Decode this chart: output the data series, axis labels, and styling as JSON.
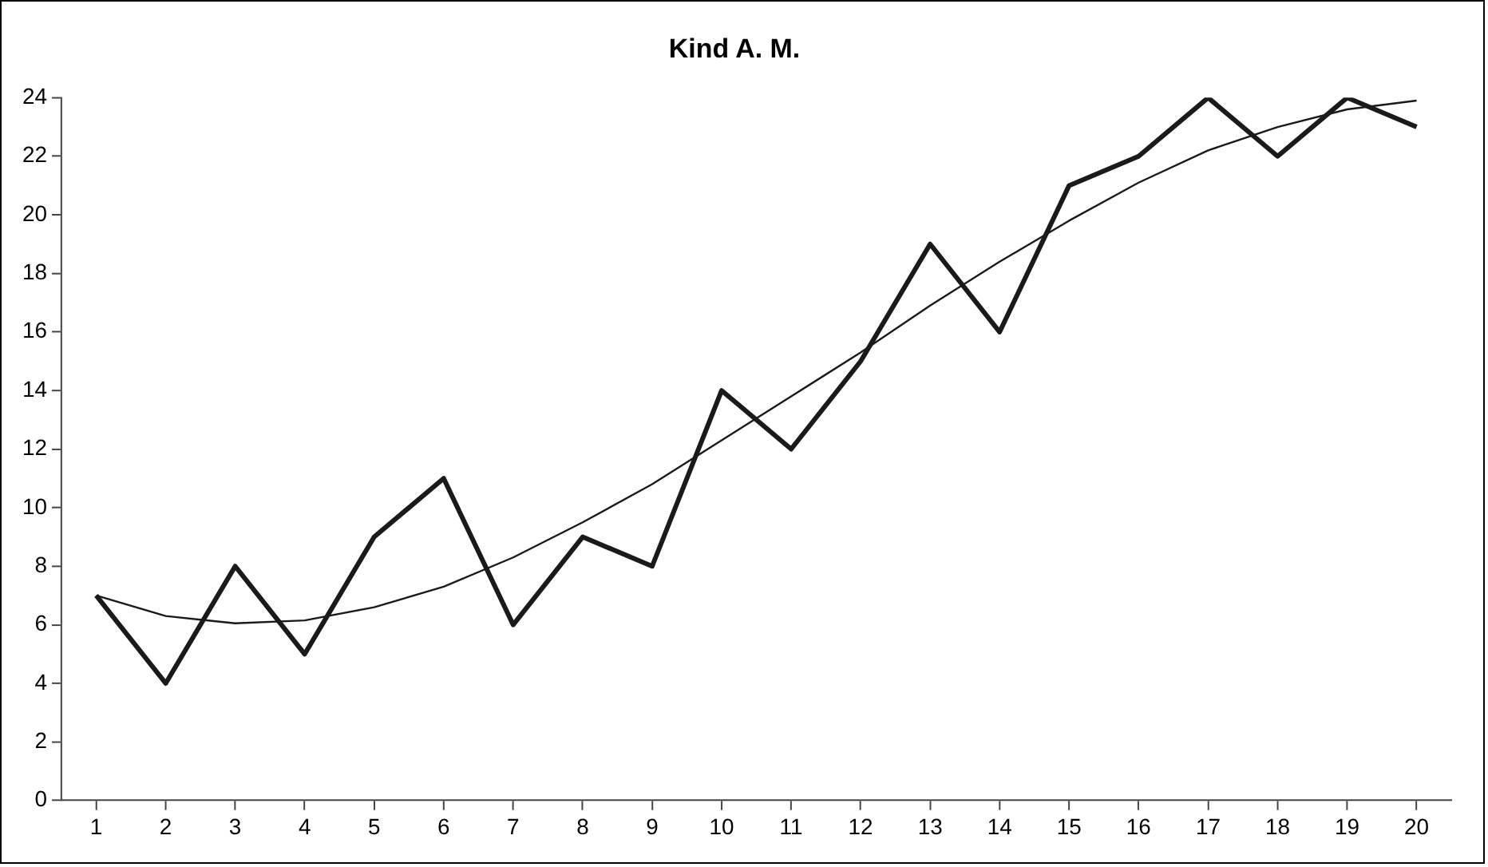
{
  "chart_data": {
    "type": "line",
    "title": "Kind A. M.",
    "x": [
      1,
      2,
      3,
      4,
      5,
      6,
      7,
      8,
      9,
      10,
      11,
      12,
      13,
      14,
      15,
      16,
      17,
      18,
      19,
      20
    ],
    "xlim": [
      0.5,
      20.5
    ],
    "xticks": [
      1,
      2,
      3,
      4,
      5,
      6,
      7,
      8,
      9,
      10,
      11,
      12,
      13,
      14,
      15,
      16,
      17,
      18,
      19,
      20
    ],
    "ylim": [
      0,
      24
    ],
    "yticks": [
      0,
      2,
      4,
      6,
      8,
      10,
      12,
      14,
      16,
      18,
      20,
      22,
      24
    ],
    "grid": false,
    "legend": false,
    "marker": "none",
    "line_style": "solid",
    "series": [
      {
        "color": "#1a1a1a",
        "values": [
          7,
          4,
          8,
          5,
          9,
          11,
          6,
          9,
          8,
          14,
          12,
          15,
          19,
          16,
          21,
          22,
          24,
          22,
          24,
          23
        ]
      },
      {
        "type": "line",
        "color": "#1a1a1a",
        "x": [
          1,
          2,
          3,
          4,
          5,
          6,
          7,
          8,
          9,
          10,
          11,
          12,
          13,
          14,
          15,
          16,
          17,
          18,
          19,
          20
        ],
        "values": [
          7,
          6.3,
          6.05,
          6.15,
          6.6,
          7.3,
          8.3,
          9.5,
          10.8,
          12.3,
          13.8,
          15.3,
          16.9,
          18.4,
          19.8,
          21.1,
          22.2,
          23,
          23.6,
          23.9
        ]
      }
    ]
  }
}
